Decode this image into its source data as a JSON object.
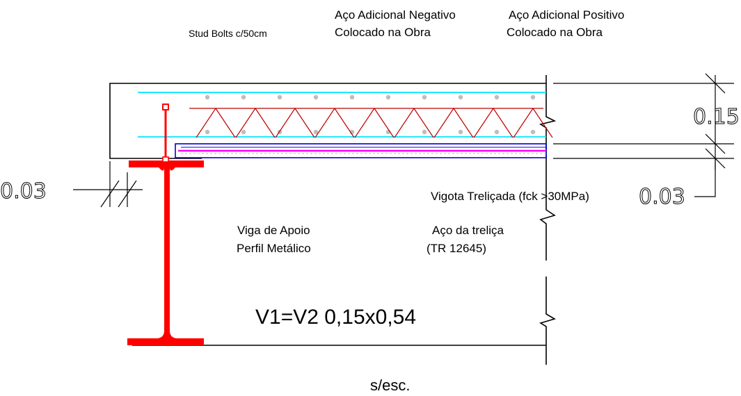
{
  "labels": {
    "stud_bolts": "Stud Bolts c/50cm",
    "aco_neg_line1": "Aço Adicional Negativo",
    "aco_neg_line2": "Colocado na Obra",
    "aco_pos_line1": "Aço Adicional Positivo",
    "aco_pos_line2": "Colocado na Obra",
    "vigota": "Vigota Treliçada (fck >30MPa)",
    "viga_line1": "Viga de Apoio",
    "viga_line2": "Perfil Metálico",
    "aco_trelica_line1": "Aço da treliça",
    "aco_trelica_line2": "(TR 12645)",
    "section_title": "V1=V2  0,15x0,54",
    "scale_note": "s/esc."
  },
  "dimensions": {
    "slab_thickness": "0.15",
    "joist_base": "0.03",
    "beam_flange_offset": "0.03"
  },
  "colors": {
    "steel_beam": "#ff0000",
    "truss": "#c00000",
    "additional_steel": "#00e5ff",
    "joist_outline": "#0000cc",
    "joist_fill_bar": "#ff00ff",
    "rebar_dots": "#bdbdbd",
    "lines": "#000000"
  }
}
